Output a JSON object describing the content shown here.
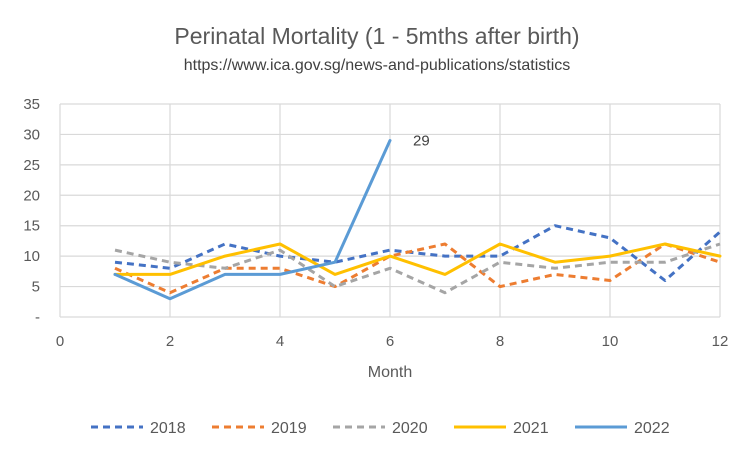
{
  "chart_data": {
    "type": "line",
    "title": "Perinatal Mortality (1 - 5mths after birth)",
    "subtitle": "https://www.ica.gov.sg/news-and-publications/statistics",
    "xlabel": "Month",
    "ylabel": "",
    "xlim": [
      0,
      12
    ],
    "ylim": [
      0,
      35
    ],
    "x_ticks": [
      0,
      2,
      4,
      6,
      8,
      10,
      12
    ],
    "y_ticks": [
      {
        "value": 0,
        "label": "-"
      },
      {
        "value": 5,
        "label": "5"
      },
      {
        "value": 10,
        "label": "10"
      },
      {
        "value": 15,
        "label": "15"
      },
      {
        "value": 20,
        "label": "20"
      },
      {
        "value": 25,
        "label": "25"
      },
      {
        "value": 30,
        "label": "30"
      },
      {
        "value": 35,
        "label": "35"
      }
    ],
    "grid": true,
    "legend_position": "bottom",
    "series": [
      {
        "name": "2018",
        "color": "#4472c4",
        "dash": "dashed",
        "x": [
          1,
          2,
          3,
          4,
          5,
          6,
          7,
          8,
          9,
          10,
          11,
          12
        ],
        "values": [
          9,
          8,
          12,
          10,
          9,
          11,
          10,
          10,
          15,
          13,
          6,
          14
        ]
      },
      {
        "name": "2019",
        "color": "#ed7d31",
        "dash": "dashed",
        "x": [
          1,
          2,
          3,
          4,
          5,
          6,
          7,
          8,
          9,
          10,
          11,
          12
        ],
        "values": [
          8,
          4,
          8,
          8,
          5,
          10,
          12,
          5,
          7,
          6,
          12,
          9
        ]
      },
      {
        "name": "2020",
        "color": "#a5a5a5",
        "dash": "dashed",
        "x": [
          1,
          2,
          3,
          4,
          5,
          6,
          7,
          8,
          9,
          10,
          11,
          12
        ],
        "values": [
          11,
          9,
          8,
          11,
          5,
          8,
          4,
          9,
          8,
          9,
          9,
          12
        ]
      },
      {
        "name": "2021",
        "color": "#ffc000",
        "dash": "solid",
        "x": [
          1,
          2,
          3,
          4,
          5,
          6,
          7,
          8,
          9,
          10,
          11,
          12
        ],
        "values": [
          7,
          7,
          10,
          12,
          7,
          10,
          7,
          12,
          9,
          10,
          12,
          10
        ]
      },
      {
        "name": "2022",
        "color": "#5b9bd5",
        "dash": "solid",
        "x": [
          1,
          2,
          3,
          4,
          5,
          6
        ],
        "values": [
          7,
          3,
          7,
          7,
          9,
          29
        ]
      }
    ],
    "annotations": [
      {
        "series": "2022",
        "x": 6,
        "y": 29,
        "text": "29"
      }
    ]
  }
}
